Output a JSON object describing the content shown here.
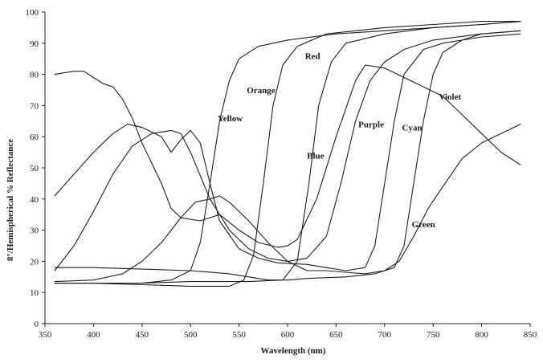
{
  "chart_data": {
    "type": "line",
    "title": "",
    "xlabel": "Wavelength (nm)",
    "ylabel": "8°/Hemispherical % Reflectance",
    "xlim": [
      350,
      850
    ],
    "ylim": [
      0,
      100
    ],
    "xticks": [
      350,
      400,
      450,
      500,
      550,
      600,
      650,
      700,
      750,
      800,
      850
    ],
    "yticks": [
      0,
      10,
      20,
      30,
      40,
      50,
      60,
      70,
      80,
      90,
      100
    ],
    "grid": false,
    "legend": "none",
    "series": [
      {
        "name": "Yellow",
        "label_at": [
          528,
          66
        ],
        "points": [
          [
            360,
            13
          ],
          [
            400,
            13
          ],
          [
            450,
            13
          ],
          [
            480,
            14
          ],
          [
            500,
            17
          ],
          [
            510,
            26
          ],
          [
            520,
            45
          ],
          [
            530,
            65
          ],
          [
            540,
            78
          ],
          [
            550,
            85
          ],
          [
            570,
            89
          ],
          [
            600,
            91
          ],
          [
            650,
            93
          ],
          [
            700,
            94
          ],
          [
            750,
            95
          ],
          [
            800,
            96
          ],
          [
            840,
            97
          ]
        ]
      },
      {
        "name": "Orange",
        "label_at": [
          558,
          75
        ],
        "points": [
          [
            360,
            13
          ],
          [
            400,
            13
          ],
          [
            450,
            12.5
          ],
          [
            500,
            12
          ],
          [
            540,
            12
          ],
          [
            555,
            14
          ],
          [
            565,
            22
          ],
          [
            575,
            45
          ],
          [
            585,
            70
          ],
          [
            595,
            83
          ],
          [
            610,
            89
          ],
          [
            640,
            93
          ],
          [
            700,
            95
          ],
          [
            750,
            96
          ],
          [
            800,
            97
          ],
          [
            840,
            97
          ]
        ]
      },
      {
        "name": "Red",
        "label_at": [
          618,
          86
        ],
        "points": [
          [
            360,
            13
          ],
          [
            400,
            13
          ],
          [
            450,
            13
          ],
          [
            500,
            13.5
          ],
          [
            560,
            13.5
          ],
          [
            595,
            14
          ],
          [
            610,
            20
          ],
          [
            622,
            45
          ],
          [
            632,
            70
          ],
          [
            645,
            84
          ],
          [
            660,
            90
          ],
          [
            700,
            93
          ],
          [
            750,
            95
          ],
          [
            800,
            96
          ],
          [
            840,
            97
          ]
        ]
      },
      {
        "name": "Blue",
        "label_at": [
          620,
          54
        ],
        "points": [
          [
            360,
            17
          ],
          [
            380,
            25
          ],
          [
            400,
            36
          ],
          [
            420,
            48
          ],
          [
            440,
            57
          ],
          [
            460,
            61
          ],
          [
            480,
            62
          ],
          [
            490,
            61
          ],
          [
            500,
            55
          ],
          [
            520,
            40
          ],
          [
            540,
            30
          ],
          [
            560,
            24
          ],
          [
            580,
            21
          ],
          [
            600,
            20
          ],
          [
            620,
            21
          ],
          [
            640,
            28
          ],
          [
            655,
            45
          ],
          [
            670,
            65
          ],
          [
            685,
            78
          ],
          [
            700,
            84
          ],
          [
            720,
            88
          ],
          [
            750,
            91
          ],
          [
            800,
            93
          ],
          [
            840,
            94
          ]
        ]
      },
      {
        "name": "Purple",
        "label_at": [
          673,
          64
        ],
        "points": [
          [
            360,
            41
          ],
          [
            380,
            48
          ],
          [
            400,
            55
          ],
          [
            420,
            61
          ],
          [
            435,
            64
          ],
          [
            450,
            63
          ],
          [
            470,
            60
          ],
          [
            480,
            55
          ],
          [
            490,
            59
          ],
          [
            500,
            62
          ],
          [
            510,
            58
          ],
          [
            520,
            45
          ],
          [
            530,
            33
          ],
          [
            550,
            24
          ],
          [
            570,
            21
          ],
          [
            590,
            19.5
          ],
          [
            620,
            19
          ],
          [
            640,
            18
          ],
          [
            660,
            17
          ],
          [
            680,
            18
          ],
          [
            690,
            25
          ],
          [
            700,
            45
          ],
          [
            710,
            65
          ],
          [
            720,
            80
          ],
          [
            740,
            88
          ],
          [
            760,
            90
          ],
          [
            800,
            92
          ],
          [
            840,
            93
          ]
        ]
      },
      {
        "name": "Cyan",
        "label_at": [
          718,
          63
        ],
        "points": [
          [
            360,
            18
          ],
          [
            400,
            18
          ],
          [
            450,
            17.5
          ],
          [
            500,
            17
          ],
          [
            540,
            16
          ],
          [
            560,
            15
          ],
          [
            580,
            14
          ],
          [
            600,
            14
          ],
          [
            620,
            14.5
          ],
          [
            660,
            15
          ],
          [
            690,
            16
          ],
          [
            710,
            18
          ],
          [
            720,
            25
          ],
          [
            730,
            45
          ],
          [
            740,
            65
          ],
          [
            750,
            80
          ],
          [
            760,
            87
          ],
          [
            780,
            91
          ],
          [
            800,
            93
          ],
          [
            840,
            94
          ]
        ]
      },
      {
        "name": "Violet",
        "label_at": [
          756,
          73
        ],
        "points": [
          [
            360,
            80
          ],
          [
            380,
            81
          ],
          [
            390,
            81
          ],
          [
            400,
            79
          ],
          [
            410,
            77
          ],
          [
            420,
            76
          ],
          [
            430,
            72
          ],
          [
            440,
            66
          ],
          [
            450,
            58
          ],
          [
            470,
            45
          ],
          [
            480,
            37
          ],
          [
            490,
            34
          ],
          [
            510,
            33
          ],
          [
            530,
            35
          ],
          [
            550,
            30
          ],
          [
            570,
            26
          ],
          [
            590,
            24.5
          ],
          [
            600,
            25
          ],
          [
            610,
            27
          ],
          [
            630,
            40
          ],
          [
            650,
            60
          ],
          [
            670,
            78
          ],
          [
            680,
            83
          ],
          [
            700,
            82
          ],
          [
            720,
            79
          ],
          [
            740,
            76
          ],
          [
            760,
            73
          ],
          [
            780,
            67
          ],
          [
            800,
            61
          ],
          [
            820,
            55
          ],
          [
            840,
            51
          ]
        ]
      },
      {
        "name": "Green",
        "label_at": [
          728,
          32
        ],
        "points": [
          [
            360,
            13.5
          ],
          [
            400,
            14
          ],
          [
            430,
            16
          ],
          [
            450,
            20
          ],
          [
            470,
            26
          ],
          [
            490,
            34
          ],
          [
            505,
            39
          ],
          [
            520,
            40
          ],
          [
            530,
            41
          ],
          [
            540,
            39
          ],
          [
            560,
            33
          ],
          [
            580,
            26
          ],
          [
            600,
            20
          ],
          [
            620,
            17
          ],
          [
            640,
            17
          ],
          [
            660,
            16.5
          ],
          [
            680,
            16
          ],
          [
            700,
            17
          ],
          [
            715,
            20
          ],
          [
            730,
            28
          ],
          [
            745,
            37
          ],
          [
            760,
            44
          ],
          [
            780,
            53
          ],
          [
            800,
            58
          ],
          [
            820,
            61
          ],
          [
            840,
            64
          ]
        ]
      }
    ]
  }
}
